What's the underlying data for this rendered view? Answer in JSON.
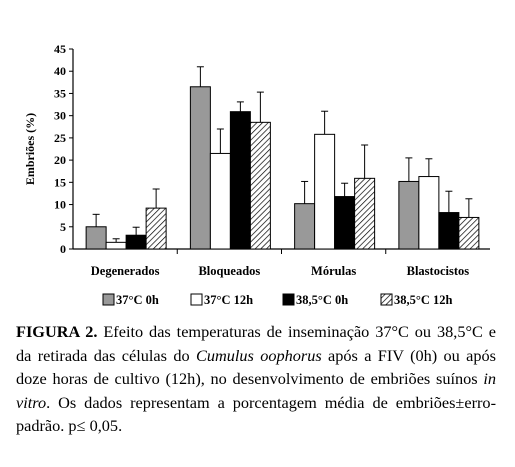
{
  "chart_data": {
    "type": "bar",
    "ylabel": "Embriões (%)",
    "ylim": [
      0,
      45
    ],
    "yticks": [
      0,
      5,
      10,
      15,
      20,
      25,
      30,
      35,
      40,
      45
    ],
    "categories": [
      "Degenerados",
      "Bloqueados",
      "Mórulas",
      "Blastocistos"
    ],
    "series": [
      {
        "name": "37°C 0h",
        "fill": "#999999",
        "values": [
          5,
          36.5,
          10.2,
          15.2
        ],
        "errors": [
          2.8,
          4.5,
          5.0,
          5.3
        ]
      },
      {
        "name": "37°C 12h",
        "fill": "#ffffff",
        "values": [
          1.5,
          21.5,
          25.8,
          16.3
        ],
        "errors": [
          0.8,
          5.5,
          5.2,
          4.0
        ]
      },
      {
        "name": "38,5°C 0h",
        "fill": "#000000",
        "values": [
          3.1,
          30.9,
          11.8,
          8.2
        ],
        "errors": [
          1.8,
          2.2,
          3.0,
          4.8
        ]
      },
      {
        "name": "38,5°C 12h",
        "fill": "hatch",
        "values": [
          9.2,
          28.5,
          15.9,
          7.1
        ],
        "errors": [
          4.3,
          6.8,
          7.5,
          4.2
        ]
      }
    ],
    "legend_position": "bottom",
    "grid": false
  },
  "caption": {
    "label": "FIGURA 2.",
    "text_1": " Efeito das temperaturas de inseminação 37°C ou 38,5°C e da retirada das células do ",
    "italic_1": "Cumulus oophorus",
    "text_2": " após a FIV (0h) ou após doze horas de cultivo (12h), no desenvolvimento de embriões suínos ",
    "italic_2": "in vitro",
    "text_3": ". Os dados representam a porcentagem média de embriões±erro-padrão. p≤ 0,05."
  }
}
